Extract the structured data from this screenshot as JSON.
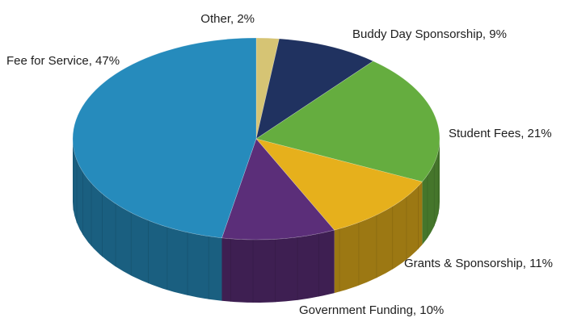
{
  "chart_data": {
    "type": "pie",
    "style": "3d",
    "title": "",
    "slices": [
      {
        "label": "Other, 2%",
        "name": "Other",
        "value": 2,
        "color": "#d6c474"
      },
      {
        "label": "Buddy Day Sponsorship, 9%",
        "name": "Buddy Day Sponsorship",
        "value": 9,
        "color": "#203260"
      },
      {
        "label": "Student Fees, 21%",
        "name": "Student Fees",
        "value": 21,
        "color": "#65ad3f"
      },
      {
        "label": "Grants & Sponsorship, 11%",
        "name": "Grants & Sponsorship",
        "value": 11,
        "color": "#e6b01c"
      },
      {
        "label": "Government Funding, 10%",
        "name": "Government Funding",
        "value": 10,
        "color": "#5b2e79"
      },
      {
        "label": "Fee for Service, 47%",
        "name": "Fee for Service",
        "value": 47,
        "color": "#268bbc"
      }
    ]
  }
}
